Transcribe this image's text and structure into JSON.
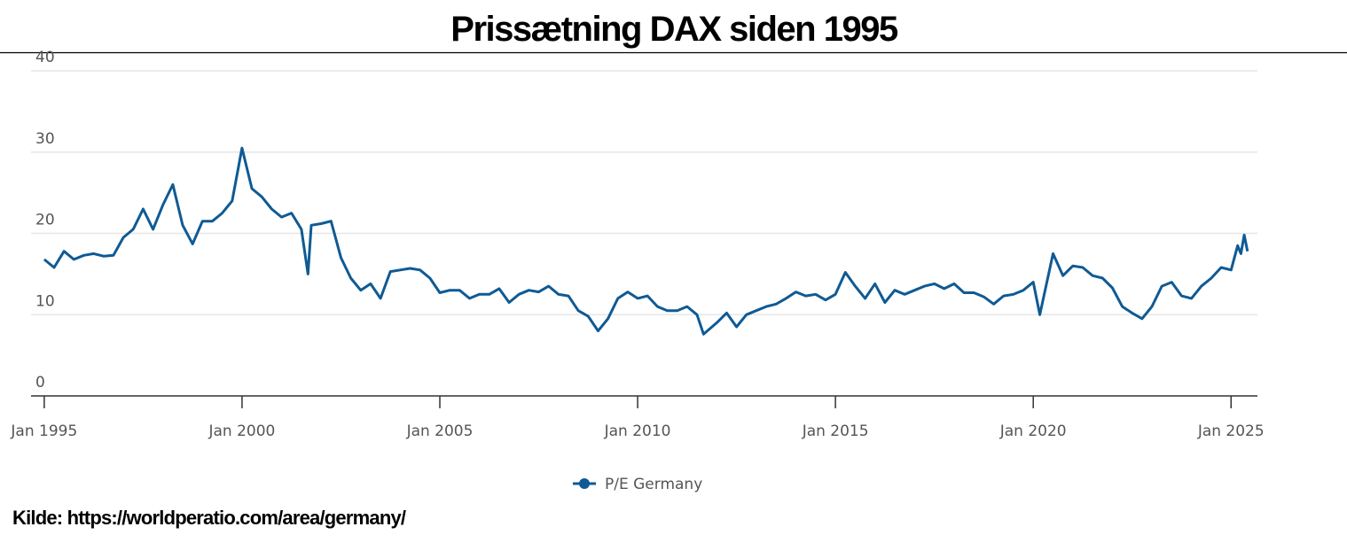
{
  "chart_data": {
    "type": "line",
    "title": "Prissætning DAX siden 1995",
    "source": "Kilde: https://worldperatio.com/area/germany/",
    "x": [
      "1995-01",
      "1995-04",
      "1995-07",
      "1995-10",
      "1996-01",
      "1996-04",
      "1996-07",
      "1996-10",
      "1997-01",
      "1997-04",
      "1997-07",
      "1997-10",
      "1998-01",
      "1998-04",
      "1998-07",
      "1998-10",
      "1999-01",
      "1999-04",
      "1999-07",
      "1999-10",
      "2000-01",
      "2000-04",
      "2000-07",
      "2000-10",
      "2001-01",
      "2001-04",
      "2001-07",
      "2001-09",
      "2001-10",
      "2002-01",
      "2002-04",
      "2002-07",
      "2002-10",
      "2003-01",
      "2003-04",
      "2003-07",
      "2003-10",
      "2004-01",
      "2004-04",
      "2004-07",
      "2004-10",
      "2005-01",
      "2005-04",
      "2005-07",
      "2005-10",
      "2006-01",
      "2006-04",
      "2006-07",
      "2006-10",
      "2007-01",
      "2007-04",
      "2007-07",
      "2007-10",
      "2008-01",
      "2008-04",
      "2008-07",
      "2008-10",
      "2009-01",
      "2009-04",
      "2009-07",
      "2009-10",
      "2010-01",
      "2010-04",
      "2010-07",
      "2010-10",
      "2011-01",
      "2011-04",
      "2011-07",
      "2011-09",
      "2012-01",
      "2012-04",
      "2012-07",
      "2012-10",
      "2013-01",
      "2013-04",
      "2013-07",
      "2013-10",
      "2014-01",
      "2014-04",
      "2014-07",
      "2014-10",
      "2015-01",
      "2015-04",
      "2015-07",
      "2015-10",
      "2016-01",
      "2016-04",
      "2016-07",
      "2016-10",
      "2017-01",
      "2017-04",
      "2017-07",
      "2017-10",
      "2018-01",
      "2018-04",
      "2018-07",
      "2018-10",
      "2019-01",
      "2019-04",
      "2019-07",
      "2019-10",
      "2020-01",
      "2020-03",
      "2020-07",
      "2020-10",
      "2021-01",
      "2021-04",
      "2021-07",
      "2021-10",
      "2022-01",
      "2022-04",
      "2022-07",
      "2022-10",
      "2023-01",
      "2023-04",
      "2023-07",
      "2023-10",
      "2024-01",
      "2024-04",
      "2024-07",
      "2024-10",
      "2025-01",
      "2025-03",
      "2025-04",
      "2025-05",
      "2025-06"
    ],
    "series": [
      {
        "name": "P/E Germany",
        "color": "#0f5a94",
        "values": [
          16.8,
          15.8,
          17.8,
          16.8,
          17.3,
          17.5,
          17.2,
          17.3,
          19.5,
          20.5,
          23,
          20.5,
          23.5,
          26,
          21,
          18.7,
          21.5,
          21.5,
          22.5,
          24,
          30.5,
          25.5,
          24.5,
          23,
          22,
          22.5,
          20.5,
          15,
          21,
          21.2,
          21.5,
          17,
          14.5,
          13,
          13.8,
          12,
          15.3,
          15.5,
          15.7,
          15.5,
          14.5,
          12.7,
          13,
          13,
          12,
          12.5,
          12.5,
          13.2,
          11.5,
          12.5,
          13,
          12.8,
          13.5,
          12.5,
          12.3,
          10.5,
          9.8,
          8,
          9.5,
          12,
          12.8,
          12,
          12.3,
          11,
          10.5,
          10.5,
          11,
          10,
          7.6,
          9,
          10.2,
          8.5,
          10,
          10.5,
          11,
          11.3,
          12,
          12.8,
          12.3,
          12.5,
          11.8,
          12.5,
          15.2,
          13.5,
          12,
          13.8,
          11.5,
          13,
          12.5,
          13,
          13.5,
          13.8,
          13.2,
          13.8,
          12.7,
          12.7,
          12.2,
          11.3,
          12.3,
          12.5,
          13,
          14,
          10,
          17.5,
          14.8,
          16,
          15.8,
          14.8,
          14.5,
          13.3,
          11,
          10.2,
          9.5,
          11,
          13.5,
          14,
          12.3,
          12,
          13.5,
          14.5,
          15.8,
          15.5,
          18.5,
          17.5,
          19.8,
          17.8
        ]
      }
    ],
    "xlim": [
      "1994-09",
      "2025-09"
    ],
    "xticks": [
      {
        "value": "1995-01",
        "label": "Jan 1995"
      },
      {
        "value": "2000-01",
        "label": "Jan 2000"
      },
      {
        "value": "2005-01",
        "label": "Jan 2005"
      },
      {
        "value": "2010-01",
        "label": "Jan 2010"
      },
      {
        "value": "2015-01",
        "label": "Jan 2015"
      },
      {
        "value": "2020-01",
        "label": "Jan 2020"
      },
      {
        "value": "2025-01",
        "label": "Jan 2025"
      }
    ],
    "ylim": [
      0,
      40
    ],
    "yticks": [
      0,
      10,
      20,
      30,
      40
    ],
    "grid": true
  }
}
